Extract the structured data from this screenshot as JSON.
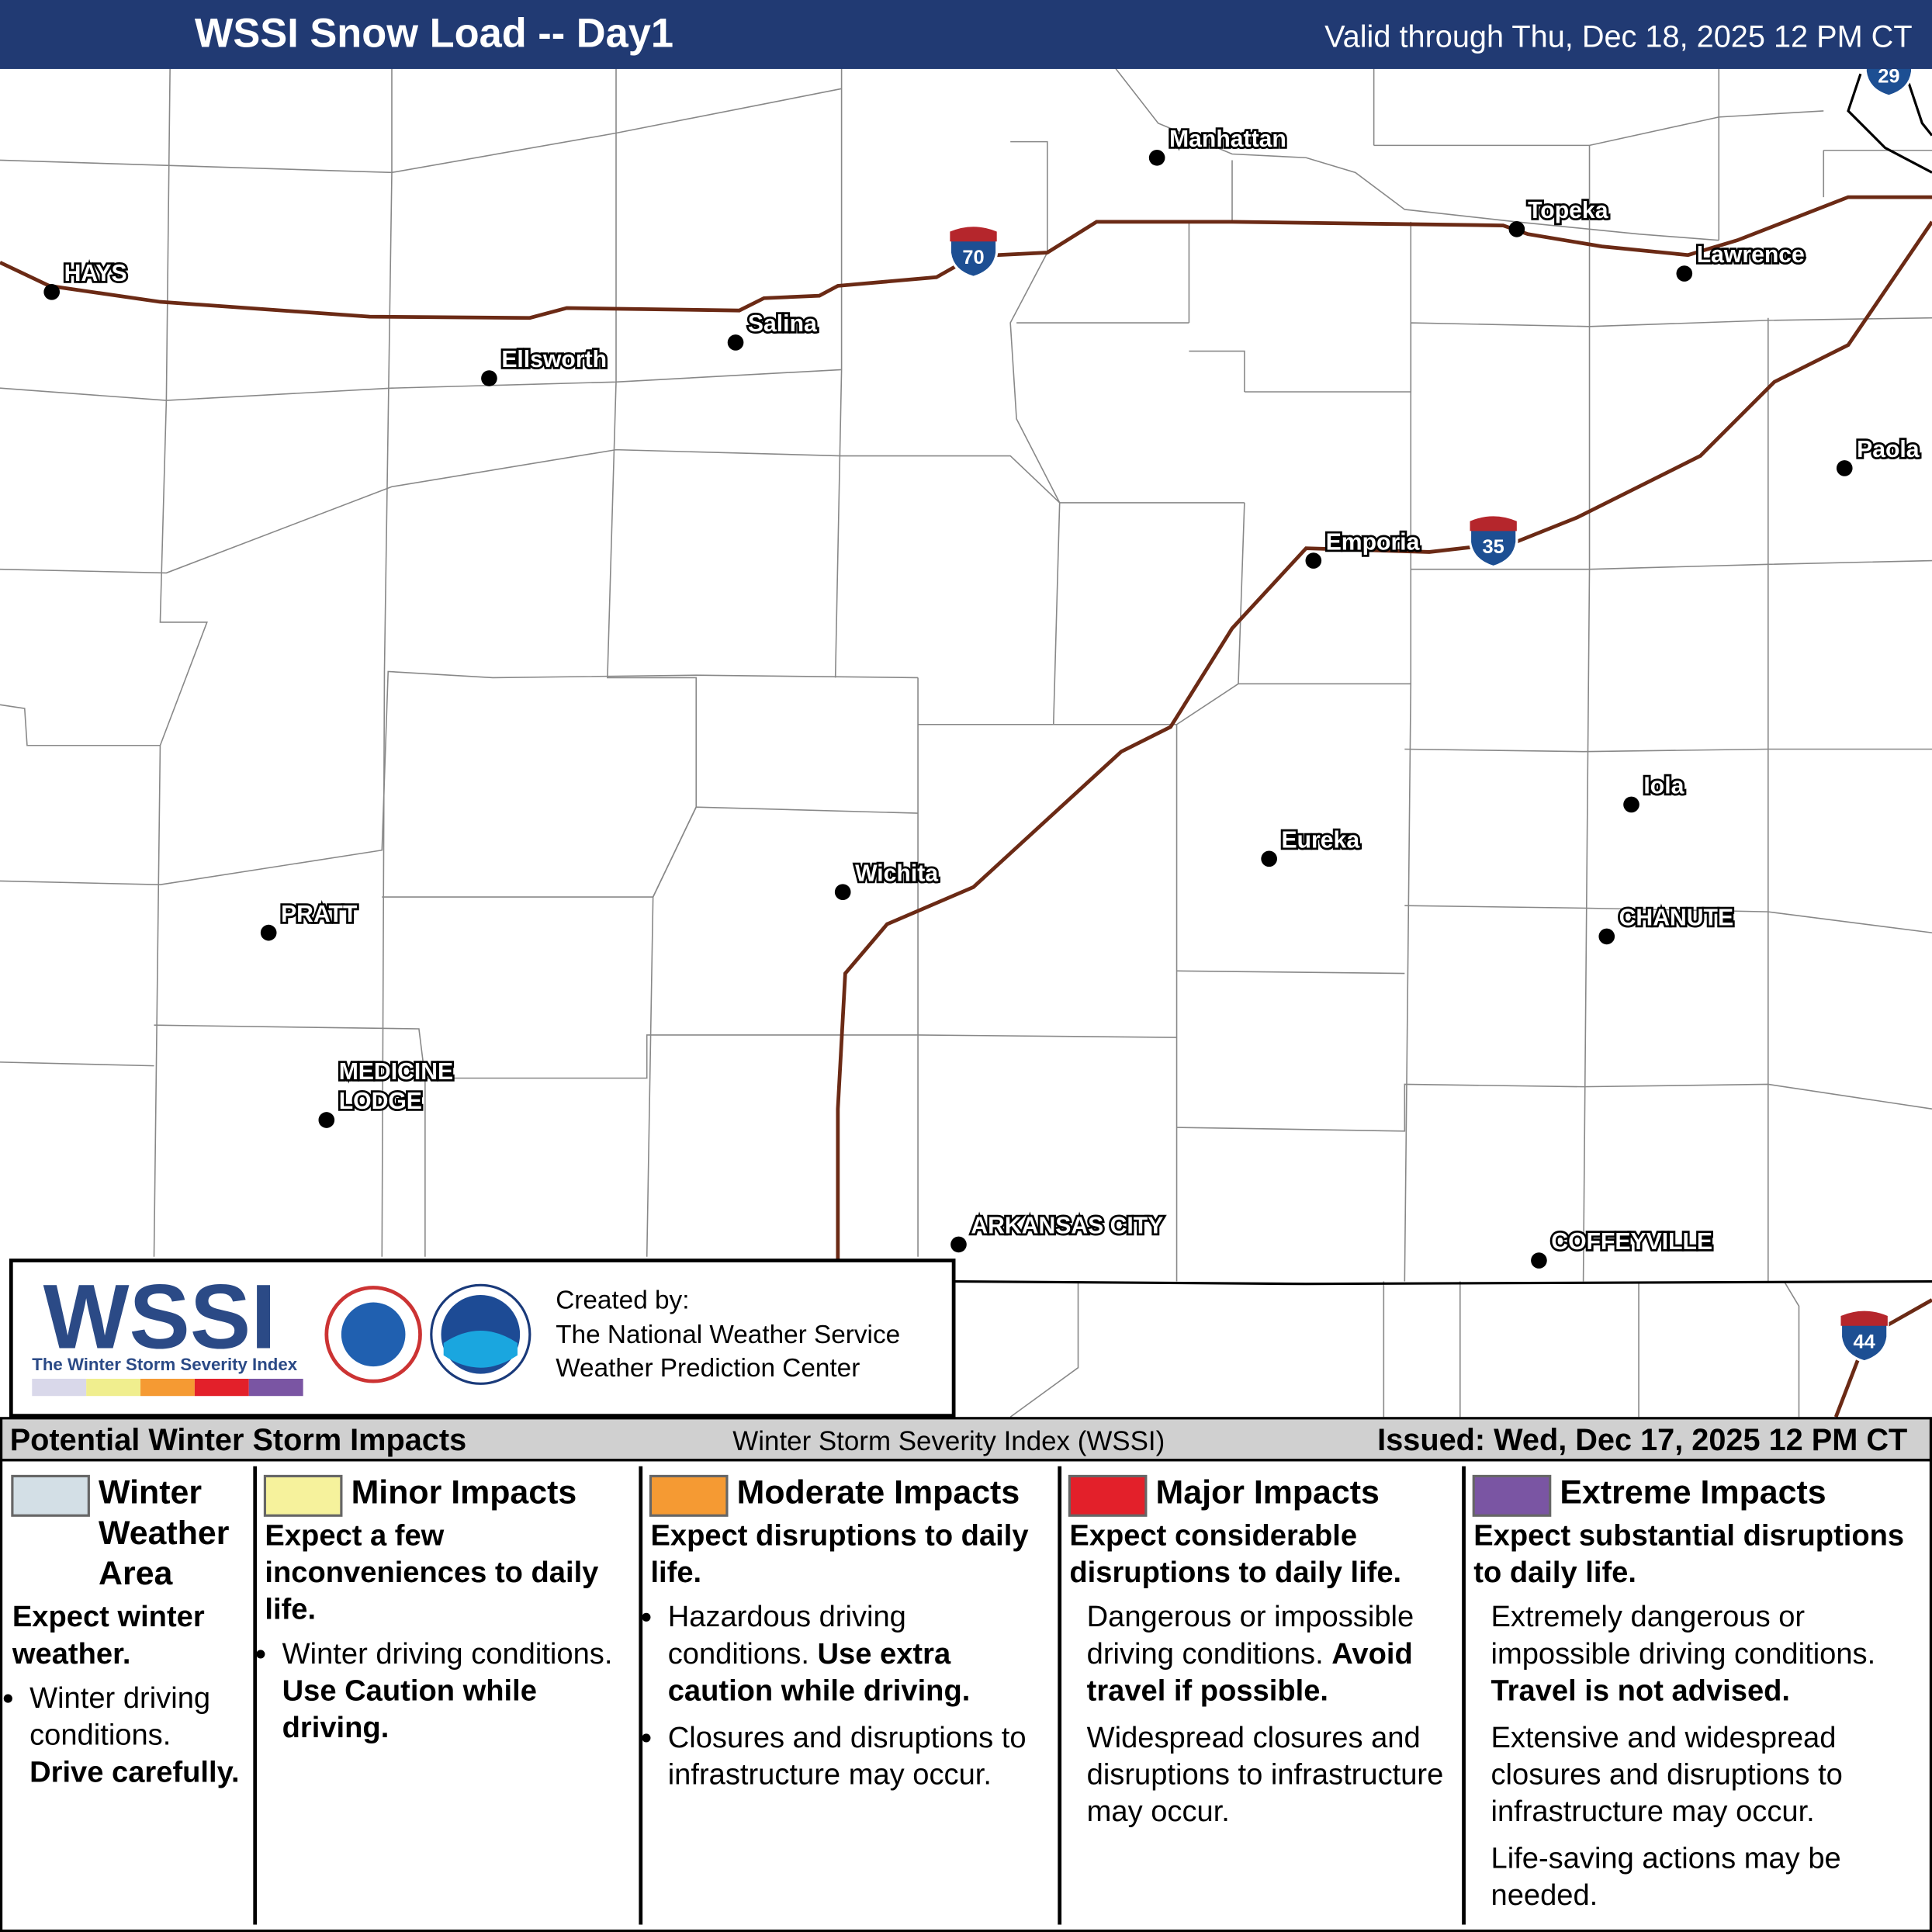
{
  "header": {
    "title": "WSSI Snow Load -- Day1",
    "valid": "Valid through Thu, Dec 18, 2025 12 PM CT"
  },
  "cities": [
    {
      "lines": [
        "HAYS"
      ]
    },
    {
      "lines": [
        "Ellsworth"
      ]
    },
    {
      "lines": [
        "Salina"
      ]
    },
    {
      "lines": [
        "Manhattan"
      ]
    },
    {
      "lines": [
        "Topeka"
      ]
    },
    {
      "lines": [
        "Lawrence"
      ]
    },
    {
      "lines": [
        "Paola"
      ]
    },
    {
      "lines": [
        "Emporia"
      ]
    },
    {
      "lines": [
        "Eureka"
      ]
    },
    {
      "lines": [
        "Iola"
      ]
    },
    {
      "lines": [
        "CHANUTE"
      ]
    },
    {
      "lines": [
        "Wichita"
      ]
    },
    {
      "lines": [
        "PRATT"
      ]
    },
    {
      "lines": [
        "MEDICINE",
        "LODGE"
      ]
    },
    {
      "lines": [
        "ARKANSAS CITY"
      ]
    },
    {
      "lines": [
        "COFFEYVILLE"
      ]
    }
  ],
  "highways": [
    "70",
    "35",
    "29",
    "44"
  ],
  "logo": {
    "name": "WSSI",
    "subtitle": "The Winter Storm Severity Index"
  },
  "credits": [
    "Created by:",
    "The National Weather Service",
    "Weather Prediction Center"
  ],
  "footer": {
    "left": "Potential Winter Storm Impacts",
    "center": "Winter Storm Severity Index (WSSI)",
    "right": "Issued: Wed, Dec 17, 2025 12 PM CT"
  },
  "legend": [
    {
      "name": "Winter Weather Area",
      "color": "#d3dfe6",
      "headline": "Expect winter weather.",
      "bullets": [
        {
          "text": "Winter driving conditions.",
          "bold": "Drive carefully."
        }
      ]
    },
    {
      "name": "Minor Impacts",
      "color": "#f6f29c",
      "headline": "Expect a few inconveniences to daily life.",
      "bullets": [
        {
          "text": "Winter driving conditions.",
          "bold": "Use Caution while driving."
        }
      ]
    },
    {
      "name": "Moderate Impacts",
      "color": "#f59a33",
      "headline": "Expect disruptions to daily life.",
      "bullets": [
        {
          "text": "Hazardous driving conditions.",
          "bold": "Use extra caution while driving."
        },
        {
          "text": "Closures and disruptions to infrastructure may occur."
        }
      ]
    },
    {
      "name": "Major Impacts",
      "color": "#e3202a",
      "headline": "Expect considerable disruptions to daily life.",
      "bullets": [
        {
          "text": "Dangerous or impossible driving conditions.",
          "bold": "Avoid travel if possible."
        },
        {
          "text": "Widespread closures and disruptions to infrastructure may occur."
        }
      ]
    },
    {
      "name": "Extreme Impacts",
      "color": "#7a55a3",
      "headline": "Expect substantial disruptions to daily life.",
      "bullets": [
        {
          "text": "Extremely dangerous or impossible driving conditions.",
          "bold": "Travel is not advised."
        },
        {
          "text": "Extensive and widespread closures and disruptions to infrastructure may occur."
        },
        {
          "text": "Life-saving actions may be needed."
        }
      ]
    }
  ]
}
